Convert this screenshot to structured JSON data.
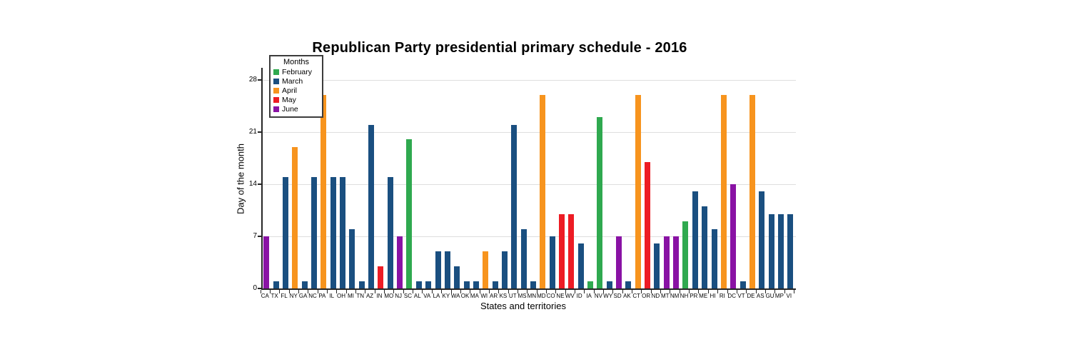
{
  "chart_data": {
    "type": "bar",
    "title": "Republican Party presidential primary schedule - 2016",
    "xlabel": "States and territories",
    "ylabel": "Day of the month",
    "ylim": [
      0,
      28
    ],
    "yticks": [
      0,
      7,
      14,
      21,
      28
    ],
    "grid": "horizontal",
    "legend": {
      "title": "Months",
      "position": "top-left",
      "entries": [
        {
          "label": "February",
          "color": "#2fa94f"
        },
        {
          "label": "March",
          "color": "#1a4f80"
        },
        {
          "label": "April",
          "color": "#f7941e"
        },
        {
          "label": "May",
          "color": "#ed1c24"
        },
        {
          "label": "June",
          "color": "#8912a4"
        }
      ]
    },
    "month_colors": {
      "February": "#2fa94f",
      "March": "#1a4f80",
      "April": "#f7941e",
      "May": "#ed1c24",
      "June": "#8912a4"
    },
    "points": [
      {
        "state": "CA",
        "day": 7,
        "month": "June"
      },
      {
        "state": "TX",
        "day": 1,
        "month": "March"
      },
      {
        "state": "FL",
        "day": 15,
        "month": "March"
      },
      {
        "state": "NY",
        "day": 19,
        "month": "April"
      },
      {
        "state": "GA",
        "day": 1,
        "month": "March"
      },
      {
        "state": "NC",
        "day": 15,
        "month": "March"
      },
      {
        "state": "PA",
        "day": 26,
        "month": "April"
      },
      {
        "state": "IL",
        "day": 15,
        "month": "March"
      },
      {
        "state": "OH",
        "day": 15,
        "month": "March"
      },
      {
        "state": "MI",
        "day": 8,
        "month": "March"
      },
      {
        "state": "TN",
        "day": 1,
        "month": "March"
      },
      {
        "state": "AZ",
        "day": 22,
        "month": "March"
      },
      {
        "state": "IN",
        "day": 3,
        "month": "May"
      },
      {
        "state": "MO",
        "day": 15,
        "month": "March"
      },
      {
        "state": "NJ",
        "day": 7,
        "month": "June"
      },
      {
        "state": "SC",
        "day": 20,
        "month": "February"
      },
      {
        "state": "AL",
        "day": 1,
        "month": "March"
      },
      {
        "state": "VA",
        "day": 1,
        "month": "March"
      },
      {
        "state": "LA",
        "day": 5,
        "month": "March"
      },
      {
        "state": "KY",
        "day": 5,
        "month": "March"
      },
      {
        "state": "WA",
        "day": 3,
        "month": "March"
      },
      {
        "state": "OK",
        "day": 1,
        "month": "March"
      },
      {
        "state": "MA",
        "day": 1,
        "month": "March"
      },
      {
        "state": "WI",
        "day": 5,
        "month": "April"
      },
      {
        "state": "AR",
        "day": 1,
        "month": "March"
      },
      {
        "state": "KS",
        "day": 5,
        "month": "March"
      },
      {
        "state": "UT",
        "day": 22,
        "month": "March"
      },
      {
        "state": "MS",
        "day": 8,
        "month": "March"
      },
      {
        "state": "MN",
        "day": 1,
        "month": "March"
      },
      {
        "state": "MD",
        "day": 26,
        "month": "April"
      },
      {
        "state": "CO",
        "day": 7,
        "month": "March"
      },
      {
        "state": "NE",
        "day": 10,
        "month": "May"
      },
      {
        "state": "WV",
        "day": 10,
        "month": "May"
      },
      {
        "state": "ID",
        "day": 6,
        "month": "March"
      },
      {
        "state": "IA",
        "day": 1,
        "month": "February"
      },
      {
        "state": "NV",
        "day": 23,
        "month": "February"
      },
      {
        "state": "WY",
        "day": 1,
        "month": "March"
      },
      {
        "state": "SD",
        "day": 7,
        "month": "June"
      },
      {
        "state": "AK",
        "day": 1,
        "month": "March"
      },
      {
        "state": "CT",
        "day": 26,
        "month": "April"
      },
      {
        "state": "OR",
        "day": 17,
        "month": "May"
      },
      {
        "state": "ND",
        "day": 6,
        "month": "March"
      },
      {
        "state": "MT",
        "day": 7,
        "month": "June"
      },
      {
        "state": "NM",
        "day": 7,
        "month": "June"
      },
      {
        "state": "NH",
        "day": 9,
        "month": "February"
      },
      {
        "state": "PR",
        "day": 13,
        "month": "March"
      },
      {
        "state": "ME",
        "day": 11,
        "month": "March"
      },
      {
        "state": "HI",
        "day": 8,
        "month": "March"
      },
      {
        "state": "RI",
        "day": 26,
        "month": "April"
      },
      {
        "state": "DC",
        "day": 14,
        "month": "June"
      },
      {
        "state": "VT",
        "day": 1,
        "month": "March"
      },
      {
        "state": "DE",
        "day": 26,
        "month": "April"
      },
      {
        "state": "AS",
        "day": 13,
        "month": "March"
      },
      {
        "state": "GU",
        "day": 10,
        "month": "March"
      },
      {
        "state": "MP",
        "day": 10,
        "month": "March"
      },
      {
        "state": "VI",
        "day": 10,
        "month": "March"
      }
    ]
  }
}
